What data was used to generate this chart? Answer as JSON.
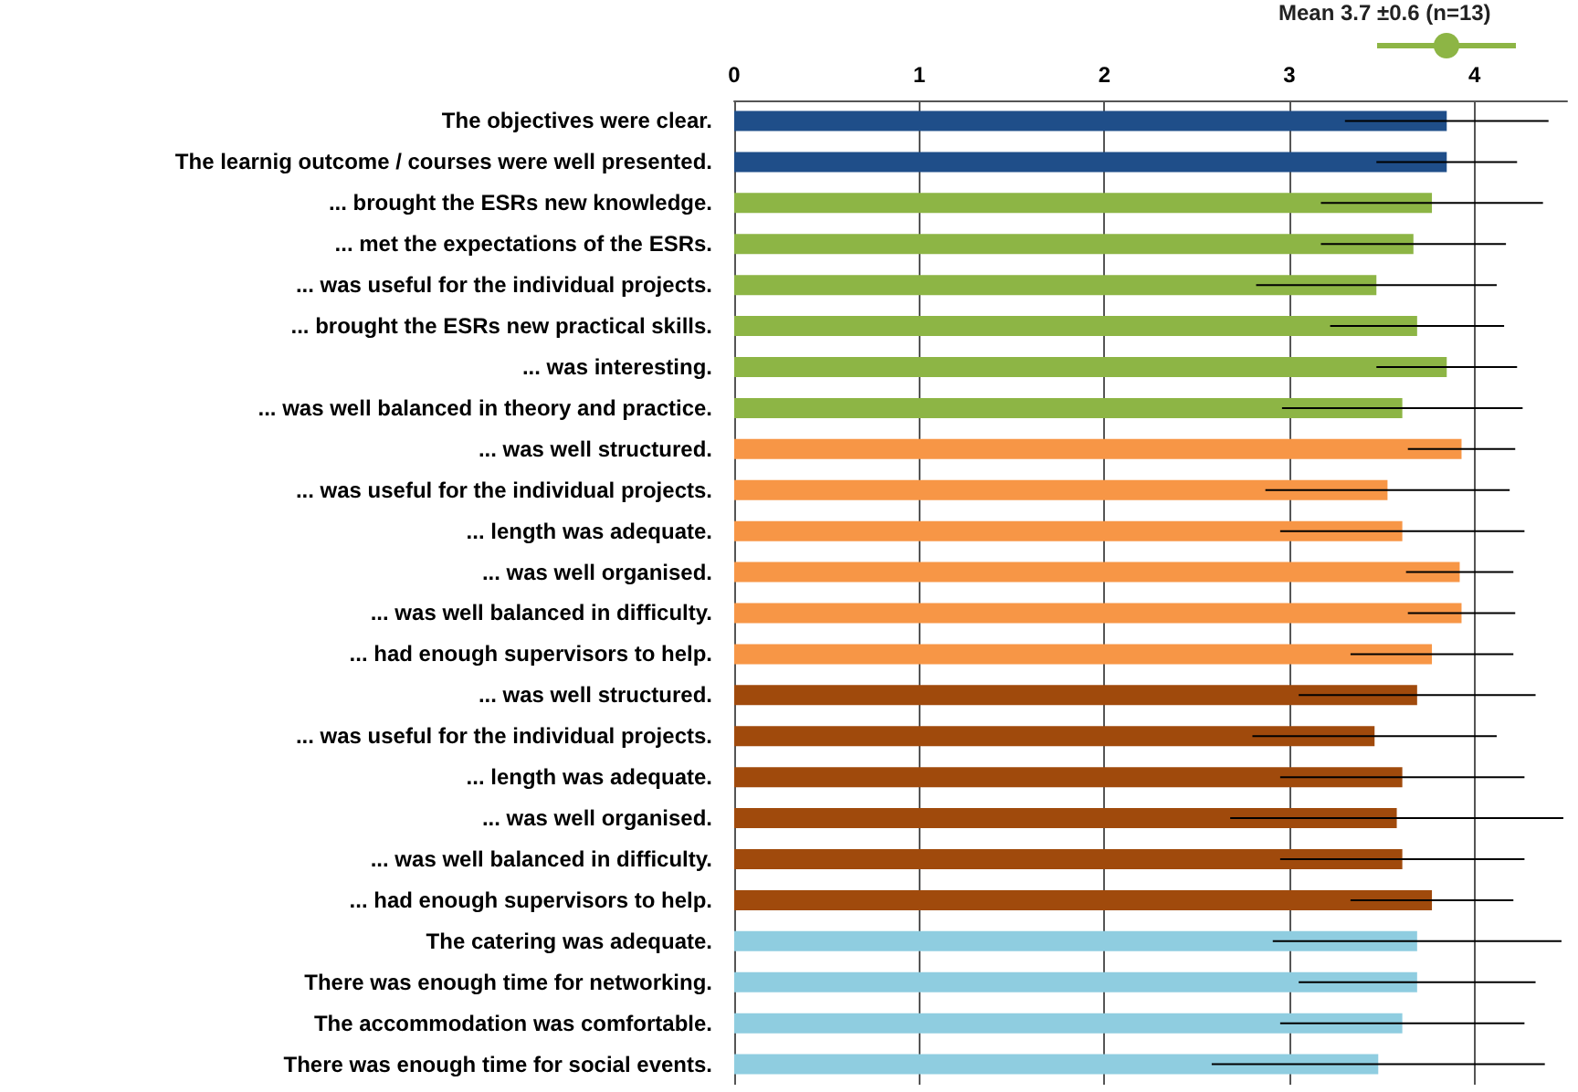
{
  "chart_data": {
    "type": "bar",
    "orientation": "horizontal",
    "categories": [
      "The objectives were clear.",
      "The learnig outcome / courses were well presented.",
      "... brought the ESRs new knowledge.",
      "... met the expectations of the ESRs.",
      "... was useful for the individual projects.",
      "... brought the ESRs new practical skills.",
      "... was interesting.",
      "... was well balanced in theory and practice.",
      "... was well structured.",
      "... was useful for the individual projects.",
      "... length was adequate.",
      "... was well organised.",
      "... was well balanced in difficulty.",
      "... had enough supervisors to help.",
      "... was well structured.",
      "... was useful for the individual projects.",
      "... length was adequate.",
      "... was well organised.",
      "... was well balanced in difficulty.",
      "... had enough supervisors to help.",
      "The catering was adequate.",
      "There was enough time for networking.",
      "The accommodation was comfortable.",
      "There was enough time for social events."
    ],
    "values": [
      3.85,
      3.85,
      3.77,
      3.67,
      3.47,
      3.69,
      3.85,
      3.61,
      3.93,
      3.53,
      3.61,
      3.92,
      3.93,
      3.77,
      3.69,
      3.46,
      3.61,
      3.58,
      3.61,
      3.77,
      3.69,
      3.69,
      3.61,
      3.48
    ],
    "errors": [
      0.55,
      0.38,
      0.6,
      0.5,
      0.65,
      0.47,
      0.38,
      0.65,
      0.29,
      0.66,
      0.66,
      0.29,
      0.29,
      0.44,
      0.64,
      0.66,
      0.66,
      0.9,
      0.66,
      0.44,
      0.78,
      0.64,
      0.66,
      0.9
    ],
    "colors": [
      "#1f4e89",
      "#1f4e89",
      "#8db545",
      "#8db545",
      "#8db545",
      "#8db545",
      "#8db545",
      "#8db545",
      "#f79646",
      "#f79646",
      "#f79646",
      "#f79646",
      "#f79646",
      "#f79646",
      "#a04a0c",
      "#a04a0c",
      "#a04a0c",
      "#a04a0c",
      "#a04a0c",
      "#a04a0c",
      "#8fcde0",
      "#8fcde0",
      "#8fcde0",
      "#8fcde0"
    ],
    "xlim": [
      0,
      4.5
    ],
    "xticks": [
      0,
      1,
      2,
      3,
      4
    ],
    "grid": "x",
    "annotations": [
      "Mean 3.7 ±0.6 (n=13)"
    ]
  }
}
